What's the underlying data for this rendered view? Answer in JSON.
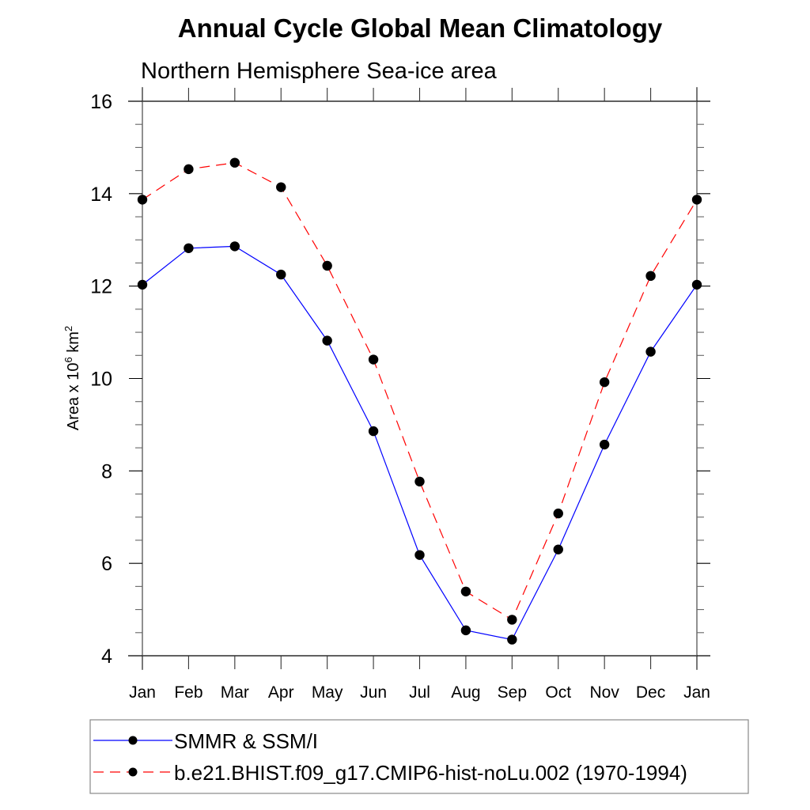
{
  "chart_data": {
    "type": "line",
    "title": "Annual Cycle Global Mean Climatology",
    "subtitle": "Northern Hemisphere Sea-ice area",
    "xlabel": "",
    "ylabel": {
      "base": "Area x 10",
      "exp": "6",
      "unit": " km",
      "unit_exp": "2"
    },
    "ylim": [
      4,
      16
    ],
    "yticks": [
      4,
      6,
      8,
      10,
      12,
      14,
      16
    ],
    "yminor_step": 0.5,
    "categories": [
      "Jan",
      "Feb",
      "Mar",
      "Apr",
      "May",
      "Jun",
      "Jul",
      "Aug",
      "Sep",
      "Oct",
      "Nov",
      "Dec",
      "Jan"
    ],
    "grid": false,
    "legend_position": "bottom",
    "series": [
      {
        "name": "SMMR & SSM/I",
        "color": "#0000ff",
        "dash": "solid",
        "marker": "filled-circle",
        "values": [
          12.03,
          12.82,
          12.86,
          12.25,
          10.82,
          8.86,
          6.18,
          4.55,
          4.35,
          6.3,
          8.57,
          10.58,
          12.03
        ]
      },
      {
        "name": "b.e21.BHIST.f09_g17.CMIP6-hist-noLu.002 (1970-1994)",
        "color": "#ff0000",
        "dash": "dashed",
        "marker": "filled-circle",
        "values": [
          13.87,
          14.53,
          14.67,
          14.14,
          12.44,
          10.41,
          7.77,
          5.39,
          4.78,
          7.08,
          9.92,
          12.22,
          13.87
        ]
      }
    ]
  }
}
